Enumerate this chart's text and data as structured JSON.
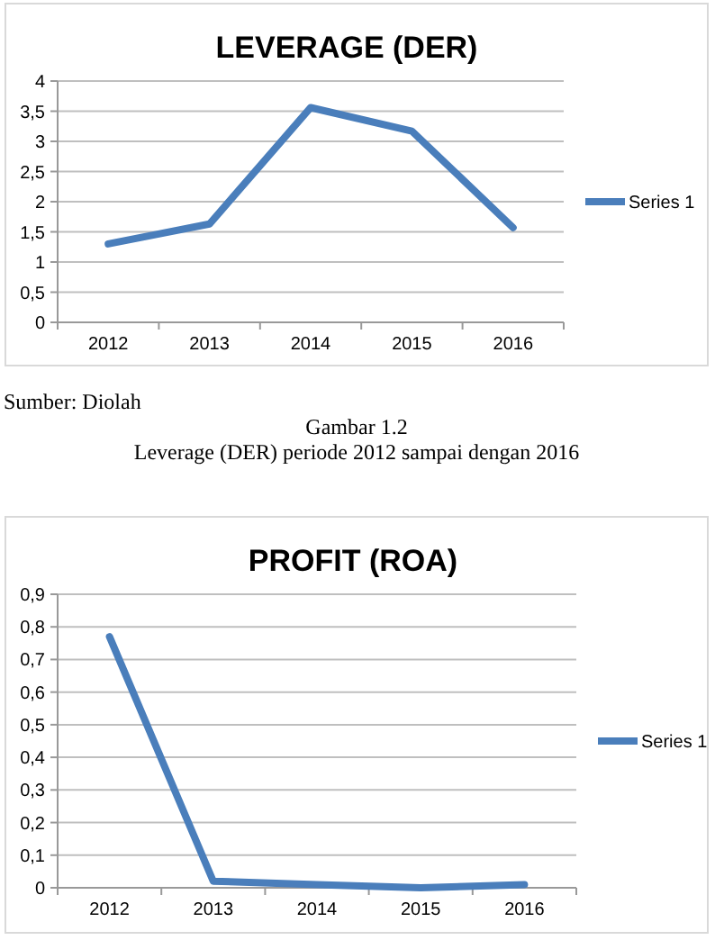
{
  "chart_data": [
    {
      "type": "line",
      "title": "LEVERAGE (DER)",
      "categories": [
        "2012",
        "2013",
        "2014",
        "2015",
        "2016"
      ],
      "series": [
        {
          "name": "Series 1",
          "color": "#4a7ebb",
          "values": [
            1.3,
            1.63,
            3.56,
            3.17,
            1.57
          ]
        }
      ],
      "ylim": [
        0,
        4
      ],
      "yticks": [
        0,
        {
          "value": 0.5,
          "label": "0,5"
        },
        1,
        {
          "value": 1.5,
          "label": "1,5"
        },
        2,
        {
          "value": 2.5,
          "label": "2,5"
        },
        3,
        {
          "value": 3.5,
          "label": "3,5"
        },
        4
      ],
      "grid": "y",
      "legend": "right",
      "marker": "none",
      "annotations": [
        "Sumber: Diolah",
        "Gambar 1.2",
        "Leverage (DER) periode 2012 sampai dengan 2016"
      ]
    },
    {
      "type": "line",
      "title": "PROFIT (ROA)",
      "categories": [
        "2012",
        "2013",
        "2014",
        "2015",
        "2016"
      ],
      "series": [
        {
          "name": "Series 1",
          "color": "#4a7ebb",
          "values": [
            0.77,
            0.02,
            0.01,
            0,
            0.01
          ]
        }
      ],
      "ylim": [
        0,
        0.9
      ],
      "yticks": [
        0,
        {
          "value": 0.1,
          "label": "0,1"
        },
        {
          "value": 0.2,
          "label": "0,2"
        },
        {
          "value": 0.3,
          "label": "0,3"
        },
        {
          "value": 0.4,
          "label": "0,4"
        },
        {
          "value": 0.5,
          "label": "0,5"
        },
        {
          "value": 0.6,
          "label": "0,6"
        },
        {
          "value": 0.7,
          "label": "0,7"
        },
        {
          "value": 0.8,
          "label": "0,8"
        },
        {
          "value": 0.9,
          "label": "0,9"
        }
      ],
      "grid": "y",
      "legend": "right",
      "marker": "none"
    }
  ]
}
